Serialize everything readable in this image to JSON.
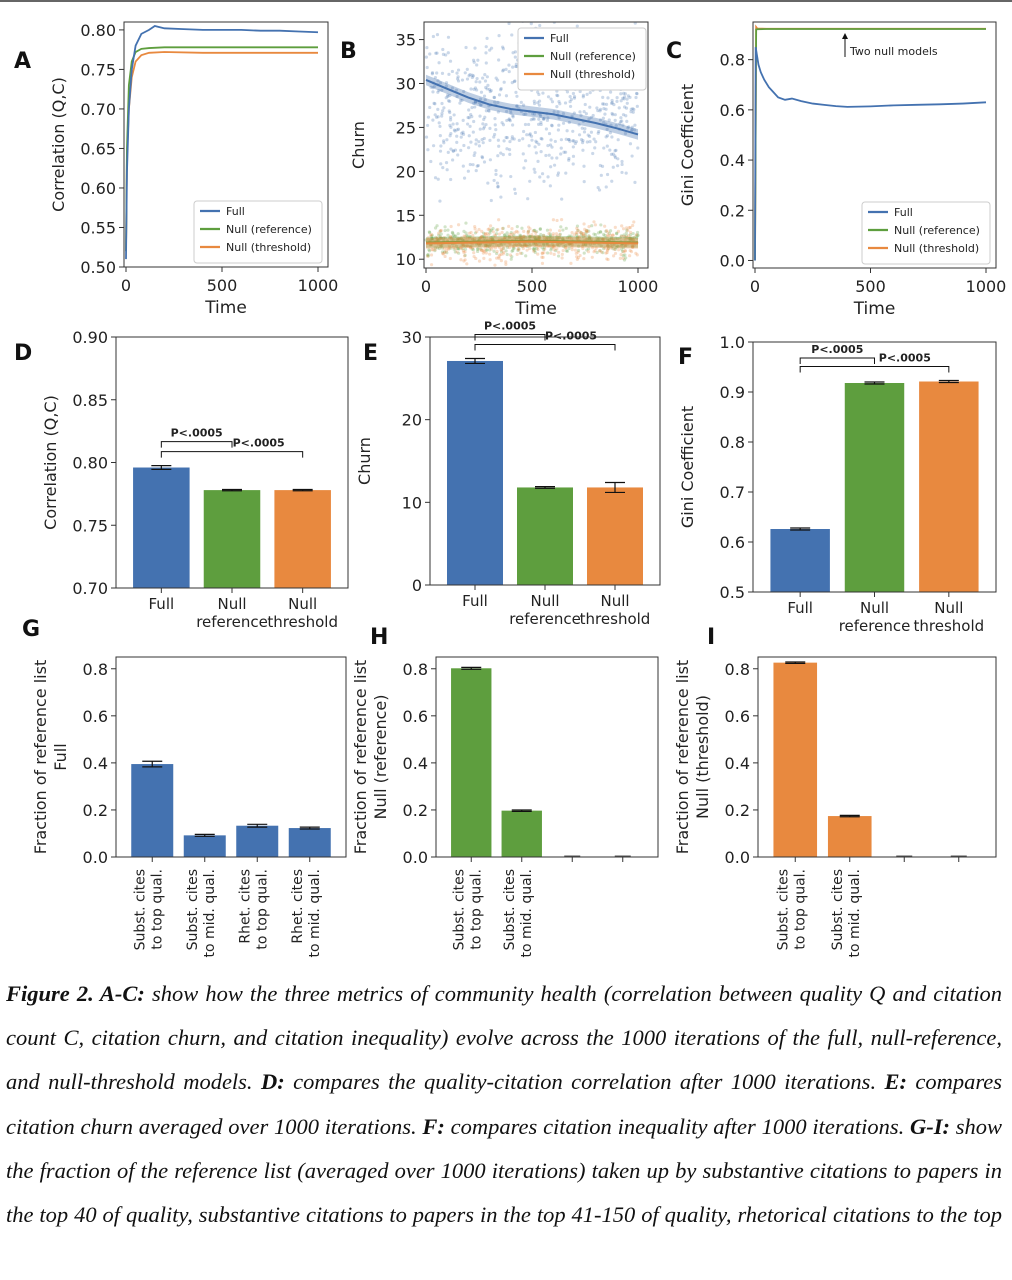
{
  "colors": {
    "full": "#4472b0",
    "null_reference": "#5e9e3e",
    "null_threshold": "#e8893f"
  },
  "panel_letters": [
    "A",
    "B",
    "C",
    "D",
    "E",
    "F",
    "G",
    "H",
    "I"
  ],
  "chart_data": [
    {
      "panel": "A",
      "type": "line",
      "xlabel": "Time",
      "ylabel": "Correlation (Q,C)",
      "xlim": [
        0,
        1000
      ],
      "ylim": [
        0.5,
        0.81
      ],
      "xticks": [
        0,
        500,
        1000
      ],
      "yticks": [
        "0.50",
        "0.55",
        "0.60",
        "0.65",
        "0.70",
        "0.75",
        "0.80"
      ],
      "legend": {
        "position": "bottom-right"
      },
      "series": [
        {
          "name": "Full",
          "x": [
            0,
            5,
            15,
            30,
            50,
            80,
            120,
            150,
            200,
            300,
            400,
            500,
            600,
            700,
            800,
            900,
            1000
          ],
          "y": [
            0.51,
            0.62,
            0.7,
            0.75,
            0.78,
            0.795,
            0.8,
            0.805,
            0.802,
            0.801,
            0.8,
            0.8,
            0.8,
            0.799,
            0.799,
            0.798,
            0.797
          ]
        },
        {
          "name": "Null (reference)",
          "x": [
            0,
            5,
            15,
            30,
            50,
            80,
            120,
            200,
            400,
            600,
            800,
            1000
          ],
          "y": [
            0.52,
            0.65,
            0.73,
            0.76,
            0.772,
            0.776,
            0.777,
            0.778,
            0.778,
            0.778,
            0.778,
            0.778
          ]
        },
        {
          "name": "Null (threshold)",
          "x": [
            0,
            5,
            15,
            30,
            50,
            80,
            120,
            200,
            400,
            600,
            800,
            1000
          ],
          "y": [
            0.52,
            0.64,
            0.7,
            0.74,
            0.76,
            0.768,
            0.771,
            0.772,
            0.771,
            0.771,
            0.771,
            0.771
          ]
        }
      ]
    },
    {
      "panel": "B",
      "type": "scatter",
      "xlabel": "Time",
      "ylabel": "Churn",
      "xlim": [
        0,
        1000
      ],
      "ylim": [
        9,
        37
      ],
      "xticks": [
        0,
        500,
        1000
      ],
      "yticks": [
        10,
        15,
        20,
        25,
        30,
        35
      ],
      "legend": {
        "position": "top-right"
      },
      "series": [
        {
          "name": "Full",
          "x": [
            0,
            100,
            200,
            300,
            400,
            500,
            600,
            700,
            800,
            900,
            1000
          ],
          "y": [
            30.4,
            29.4,
            28.4,
            27.6,
            27.1,
            26.8,
            26.5,
            26.0,
            25.5,
            24.9,
            24.2
          ],
          "scatter_center": 27.0,
          "scatter_spread": 8.5
        },
        {
          "name": "Null (reference)",
          "x": [
            0,
            250,
            500,
            750,
            1000
          ],
          "y": [
            11.9,
            12.0,
            12.1,
            12.0,
            11.9
          ],
          "scatter_center": 12.0,
          "scatter_spread": 1.6
        },
        {
          "name": "Null (threshold)",
          "x": [
            0,
            250,
            500,
            750,
            1000
          ],
          "y": [
            11.8,
            11.9,
            12.0,
            11.9,
            11.8
          ],
          "scatter_center": 11.9,
          "scatter_spread": 2.0
        }
      ]
    },
    {
      "panel": "C",
      "type": "line",
      "xlabel": "Time",
      "ylabel": "Gini Coefficient",
      "xlim": [
        0,
        1000
      ],
      "ylim": [
        -0.03,
        0.95
      ],
      "xticks": [
        0,
        500,
        1000
      ],
      "yticks": [
        "0.0",
        "0.2",
        "0.4",
        "0.6",
        "0.8"
      ],
      "legend": {
        "position": "bottom-right"
      },
      "annotation": "Two null models",
      "series": [
        {
          "name": "Full",
          "x": [
            0,
            3,
            8,
            15,
            25,
            40,
            60,
            80,
            100,
            130,
            160,
            200,
            250,
            300,
            350,
            400,
            500,
            600,
            700,
            800,
            900,
            1000
          ],
          "y": [
            0.0,
            0.85,
            0.82,
            0.78,
            0.75,
            0.72,
            0.69,
            0.67,
            0.65,
            0.64,
            0.645,
            0.635,
            0.625,
            0.62,
            0.615,
            0.612,
            0.614,
            0.618,
            0.62,
            0.622,
            0.625,
            0.63
          ]
        },
        {
          "name": "Null (reference)",
          "x": [
            0,
            5,
            10,
            50,
            200,
            500,
            1000
          ],
          "y": [
            0.0,
            0.92,
            0.921,
            0.922,
            0.922,
            0.922,
            0.922
          ]
        },
        {
          "name": "Null (threshold)",
          "x": [
            0,
            5,
            10,
            50,
            200,
            500,
            1000
          ],
          "y": [
            0.0,
            0.93,
            0.924,
            0.923,
            0.923,
            0.923,
            0.923
          ]
        }
      ]
    },
    {
      "panel": "D",
      "type": "bar",
      "ylabel": "Correlation (Q,C)",
      "ylim": [
        0.7,
        0.9
      ],
      "yticks": [
        "0.70",
        "0.75",
        "0.80",
        "0.85",
        "0.90"
      ],
      "categories": [
        "Full",
        "Null\nreference",
        "Null\nthreshold"
      ],
      "values": [
        0.796,
        0.778,
        0.778
      ],
      "errors": [
        0.0015,
        0.0005,
        0.0005
      ],
      "brackets": [
        {
          "from": 0,
          "to": 1,
          "label": "P<.0005"
        },
        {
          "from": 0,
          "to": 2,
          "label": "P<.0005"
        }
      ]
    },
    {
      "panel": "E",
      "type": "bar",
      "ylabel": "Churn",
      "ylim": [
        0,
        30
      ],
      "yticks": [
        0,
        10,
        20,
        30
      ],
      "categories": [
        "Full",
        "Null\nreference",
        "Null\nthreshold"
      ],
      "values": [
        27.1,
        11.8,
        11.8
      ],
      "errors": [
        0.3,
        0.1,
        0.6
      ],
      "brackets": [
        {
          "from": 0,
          "to": 1,
          "label": "P<.0005"
        },
        {
          "from": 0,
          "to": 2,
          "label": "P<.0005"
        }
      ]
    },
    {
      "panel": "F",
      "type": "bar",
      "ylabel": "Gini Coefficient",
      "ylim": [
        0.5,
        1.0
      ],
      "yticks": [
        "0.5",
        "0.6",
        "0.7",
        "0.8",
        "0.9",
        "1.0"
      ],
      "categories": [
        "Full",
        "Null\nreference",
        "Null\nthreshold"
      ],
      "values": [
        0.626,
        0.918,
        0.921
      ],
      "errors": [
        0.002,
        0.002,
        0.002
      ],
      "brackets": [
        {
          "from": 0,
          "to": 1,
          "label": "P<.0005"
        },
        {
          "from": 0,
          "to": 2,
          "label": "P<.0005"
        }
      ]
    },
    {
      "panel": "G",
      "type": "bar",
      "ylabel": "Fraction of reference list\nFull",
      "ylim": [
        0,
        0.85
      ],
      "yticks": [
        "0.0",
        "0.2",
        "0.4",
        "0.6",
        "0.8"
      ],
      "categories": [
        "Subst. cites\nto top qual.",
        "Subst. cites\nto mid. qual.",
        "Rhet. cites\nto top qual.",
        "Rhet. cites\nto mid. qual."
      ],
      "values": [
        0.395,
        0.092,
        0.133,
        0.123
      ],
      "errors": [
        0.012,
        0.004,
        0.006,
        0.004
      ]
    },
    {
      "panel": "H",
      "type": "bar",
      "ylabel": "Fraction of reference list\nNull (reference)",
      "ylim": [
        0,
        0.85
      ],
      "yticks": [
        "0.0",
        "0.2",
        "0.4",
        "0.6",
        "0.8"
      ],
      "categories": [
        "Subst. cites\nto top qual.",
        "Subst. cites\nto mid. qual.",
        "",
        ""
      ],
      "values": [
        0.802,
        0.197,
        0.001,
        0.001
      ],
      "errors": [
        0.004,
        0.003,
        0.0,
        0.0
      ]
    },
    {
      "panel": "I",
      "type": "bar",
      "ylabel": "Fraction of reference list\nNull (threshold)",
      "ylim": [
        0,
        0.85
      ],
      "yticks": [
        "0.0",
        "0.2",
        "0.4",
        "0.6",
        "0.8"
      ],
      "categories": [
        "Subst. cites\nto top qual.",
        "Subst. cites\nto mid. qual.",
        "",
        ""
      ],
      "values": [
        0.826,
        0.174,
        0.001,
        0.001
      ],
      "errors": [
        0.003,
        0.003,
        0.0,
        0.0
      ]
    }
  ],
  "caption": {
    "p1_label": "Figure 2. A-C:",
    "p1_text": " show how the three metrics of community health (correlation between quality Q and citation count C, citation churn, and citation inequality) evolve across the 1000 iterations of the full, null-reference, and null-threshold models. ",
    "p2_label": "D:",
    "p2_text": " compares the quality-citation correlation after 1000 iterations. ",
    "p3_label": "E:",
    "p3_text": " compares citation churn averaged over 1000 iterations. ",
    "p4_label": "F:",
    "p4_text": " compares citation inequality after 1000 iterations. ",
    "p5_label": "G-I:",
    "p5_text": " show the fraction of the reference list (averaged over 1000 iterations) taken up by substantive citations to papers in the top 40 of quality, substantive citations to papers in the top 41-150 of quality, rhetorical citations to the top"
  }
}
